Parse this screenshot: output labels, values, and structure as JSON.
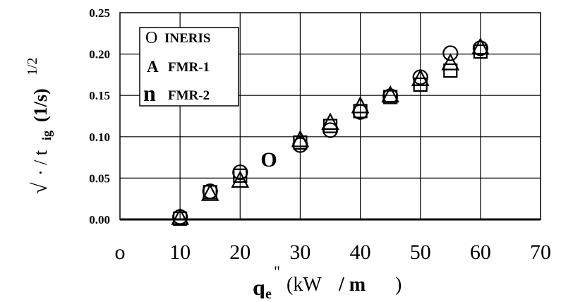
{
  "chart_data": {
    "type": "scatter",
    "title": "",
    "xlabel": "q_e\" (kW / m )",
    "ylabel": "√(1/t_ig) (1/s)^1/2",
    "xlim": [
      0,
      70
    ],
    "ylim": [
      0.0,
      0.25
    ],
    "x_ticks": [
      "o",
      "10",
      "20",
      "30",
      "40",
      "50",
      "60",
      "70"
    ],
    "y_ticks": [
      "0.00",
      "0.05",
      "0.10",
      "0.15",
      "0.20",
      "0.25"
    ],
    "grid": true,
    "legend_position": "top-left",
    "stray_marker_label": "O",
    "series": [
      {
        "name": "INERIS",
        "marker": "circle",
        "points": [
          [
            10,
            0.003
          ],
          [
            15,
            0.034
          ],
          [
            20,
            0.057
          ],
          [
            30,
            0.09
          ],
          [
            35,
            0.108
          ],
          [
            40,
            0.13
          ],
          [
            45,
            0.149
          ],
          [
            50,
            0.172
          ],
          [
            55,
            0.201
          ],
          [
            60,
            0.207
          ]
        ]
      },
      {
        "name": "FMR-1",
        "marker": "triangle",
        "points": [
          [
            10,
            0.002
          ],
          [
            15,
            0.031
          ],
          [
            20,
            0.047
          ],
          [
            30,
            0.096
          ],
          [
            35,
            0.117
          ],
          [
            40,
            0.137
          ],
          [
            45,
            0.15
          ],
          [
            50,
            0.17
          ],
          [
            55,
            0.189
          ],
          [
            60,
            0.208
          ]
        ]
      },
      {
        "name": "FMR-2",
        "marker": "square",
        "points": [
          [
            10,
            0.001
          ],
          [
            15,
            0.033
          ],
          [
            20,
            0.053
          ],
          [
            30,
            0.093
          ],
          [
            35,
            0.113
          ],
          [
            40,
            0.131
          ],
          [
            45,
            0.148
          ],
          [
            50,
            0.163
          ],
          [
            55,
            0.18
          ],
          [
            60,
            0.203
          ]
        ]
      }
    ]
  },
  "legend_markers": {
    "INERIS": "O",
    "FMR-1": "A",
    "FMR-2": "n"
  }
}
